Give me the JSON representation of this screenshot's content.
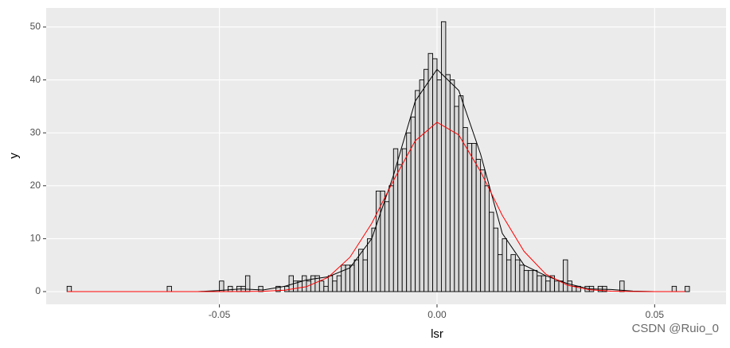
{
  "chart_data": {
    "type": "histogram",
    "x_label": "lsr",
    "y_label": "y",
    "watermark": "CSDN @Ruio_0",
    "bins": [
      -0.085,
      -0.084,
      -0.083,
      -0.082,
      -0.081,
      -0.08,
      -0.079,
      -0.078,
      -0.077,
      -0.076,
      -0.075,
      -0.074,
      -0.073,
      -0.072,
      -0.071,
      -0.07,
      -0.069,
      -0.068,
      -0.067,
      -0.066,
      -0.065,
      -0.064,
      -0.063,
      -0.062,
      -0.061,
      -0.06,
      -0.059,
      -0.058,
      -0.057,
      -0.056,
      -0.055,
      -0.054,
      -0.053,
      -0.052,
      -0.051,
      -0.05,
      -0.049,
      -0.048,
      -0.047,
      -0.046,
      -0.045,
      -0.044,
      -0.043,
      -0.042,
      -0.041,
      -0.04,
      -0.039,
      -0.038,
      -0.037,
      -0.036,
      -0.035,
      -0.034,
      -0.033,
      -0.032,
      -0.031,
      -0.03,
      -0.029,
      -0.028,
      -0.027,
      -0.026,
      -0.025,
      -0.024,
      -0.023,
      -0.022,
      -0.021,
      -0.02,
      -0.019,
      -0.018,
      -0.017,
      -0.016,
      -0.015,
      -0.014,
      -0.013,
      -0.012,
      -0.011,
      -0.01,
      -0.009,
      -0.008,
      -0.007,
      -0.006,
      -0.005,
      -0.004,
      -0.003,
      -0.002,
      -0.001,
      0,
      0.001,
      0.002,
      0.003,
      0.004,
      0.005,
      0.006,
      0.007,
      0.008,
      0.009,
      0.01,
      0.011,
      0.012,
      0.013,
      0.014,
      0.015,
      0.016,
      0.017,
      0.018,
      0.019,
      0.02,
      0.021,
      0.022,
      0.023,
      0.024,
      0.025,
      0.026,
      0.027,
      0.028,
      0.029,
      0.03,
      0.031,
      0.032,
      0.033,
      0.034,
      0.035,
      0.036,
      0.037,
      0.038,
      0.039,
      0.04,
      0.041,
      0.042,
      0.043,
      0.044,
      0.045,
      0.046,
      0.047,
      0.048,
      0.049,
      0.05,
      0.051,
      0.052,
      0.053,
      0.054,
      0.055,
      0.056,
      0.057,
      0.058
    ],
    "counts": [
      1,
      0,
      0,
      0,
      0,
      0,
      0,
      0,
      0,
      0,
      0,
      0,
      0,
      0,
      0,
      0,
      0,
      0,
      0,
      0,
      0,
      0,
      0,
      1,
      0,
      0,
      0,
      0,
      0,
      0,
      0,
      0,
      0,
      0,
      0,
      2,
      0,
      1,
      0,
      1,
      1,
      3,
      0,
      0,
      1,
      0,
      0,
      0,
      1,
      0,
      1,
      3,
      2,
      2,
      3,
      2,
      3,
      3,
      2,
      1,
      3,
      2,
      3,
      5,
      5,
      5,
      6,
      8,
      6,
      10,
      12,
      19,
      19,
      17,
      20,
      27,
      24,
      27,
      30,
      33,
      38,
      40,
      42,
      45,
      44,
      40,
      51,
      41,
      40,
      35,
      37,
      31,
      28,
      28,
      25,
      23,
      20,
      15,
      12,
      7,
      10,
      6,
      7,
      6,
      5,
      4,
      4,
      4,
      3,
      3,
      2,
      3,
      2,
      2,
      6,
      2,
      1,
      1,
      0,
      1,
      1,
      0,
      1,
      1,
      0,
      0,
      0,
      2,
      0,
      0,
      0,
      0,
      0,
      0,
      0,
      0,
      0,
      0,
      0,
      1,
      0,
      0,
      1
    ],
    "bar_color": "#d9d9d9",
    "curve_x": [
      -0.085,
      -0.08,
      -0.075,
      -0.07,
      -0.065,
      -0.06,
      -0.055,
      -0.05,
      -0.045,
      -0.04,
      -0.035,
      -0.03,
      -0.025,
      -0.02,
      -0.015,
      -0.01,
      -0.005,
      0,
      0.005,
      0.01,
      0.015,
      0.02,
      0.025,
      0.03,
      0.035,
      0.04,
      0.045,
      0.05,
      0.055,
      0.057
    ],
    "curves": [
      {
        "color": "#000000",
        "values": [
          0,
          0,
          0,
          0,
          0,
          0,
          0,
          0.2,
          0.5,
          0.3,
          1,
          2.2,
          2.8,
          4.5,
          10,
          22,
          36,
          42,
          38,
          26,
          11,
          5,
          3,
          1.5,
          0.5,
          0.4,
          0.1,
          0,
          0,
          0
        ]
      },
      {
        "color": "#ff0000",
        "values": [
          0,
          0,
          0,
          0,
          0,
          0,
          0,
          0.01,
          0.02,
          0.06,
          0.27,
          0.93,
          2.7,
          6.5,
          12.9,
          21,
          28.5,
          32,
          29.6,
          22.7,
          14.4,
          7.6,
          3.3,
          1.2,
          0.35,
          0.08,
          0.02,
          0,
          0,
          0
        ]
      }
    ],
    "xlim": [
      -0.0898,
      0.0664
    ],
    "ylim": [
      -2.4,
      53.6
    ],
    "xticks": [
      -0.05,
      {
        "value": 0,
        "label": "0.00"
      },
      0.05
    ],
    "yticks": [
      0,
      10,
      20,
      30,
      40,
      50
    ],
    "grid": true
  }
}
